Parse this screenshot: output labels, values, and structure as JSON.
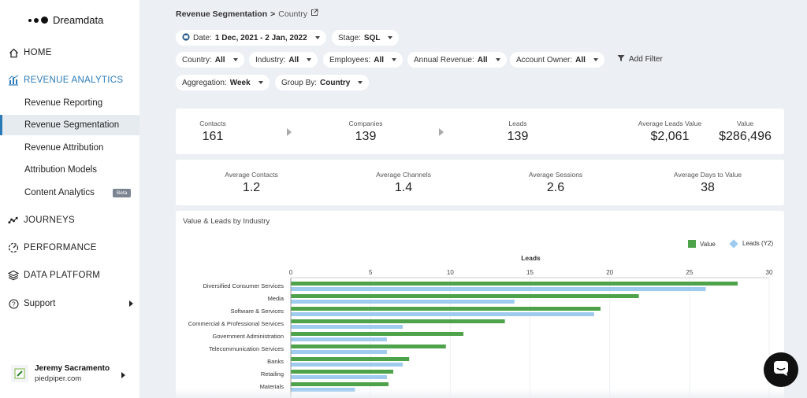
{
  "app": {
    "name": "Dreamdata"
  },
  "sidebar": {
    "home": "HOME",
    "revenue_analytics": "REVENUE ANALYTICS",
    "sub_items": [
      {
        "label": "Revenue Reporting"
      },
      {
        "label": "Revenue Segmentation",
        "active": true
      },
      {
        "label": "Revenue Attribution"
      },
      {
        "label": "Attribution Models"
      },
      {
        "label": "Content Analytics",
        "badge": "Beta"
      }
    ],
    "journeys": "JOURNEYS",
    "performance": "PERFORMANCE",
    "data_platform": "DATA PLATFORM",
    "support": "Support",
    "user": {
      "name": "Jeremy Sacramento",
      "domain": "piedpiper.com",
      "logo_text": "piedpiper"
    }
  },
  "header": {
    "breadcrumb_parent": "Revenue Segmentation",
    "breadcrumb_separator": ">",
    "breadcrumb_current": "Country"
  },
  "filters": {
    "date": {
      "label": "Date:",
      "value": "1 Dec, 2021 - 2 Jan, 2022"
    },
    "stage": {
      "label": "Stage:",
      "value": "SQL"
    },
    "country": {
      "label": "Country:",
      "value": "All"
    },
    "industry": {
      "label": "Industry:",
      "value": "All"
    },
    "employees": {
      "label": "Employees:",
      "value": "All"
    },
    "annual_revenue": {
      "label": "Annual Revenue:",
      "value": "All"
    },
    "account_owner": {
      "label": "Account Owner:",
      "value": "All"
    },
    "add_filter": "Add Filter",
    "aggregation": {
      "label": "Aggregation:",
      "value": "Week"
    },
    "group_by": {
      "label": "Group By:",
      "value": "Country"
    }
  },
  "funnel": {
    "contacts": {
      "label": "Contacts",
      "value": "161"
    },
    "companies": {
      "label": "Companies",
      "value": "139"
    },
    "leads": {
      "label": "Leads",
      "value": "139"
    },
    "avg_leads_value": {
      "label": "Average Leads Value",
      "value": "$2,061"
    },
    "value": {
      "label": "Value",
      "value": "$286,496"
    }
  },
  "averages": {
    "contacts": {
      "label": "Average Contacts",
      "value": "1.2"
    },
    "channels": {
      "label": "Average Channels",
      "value": "1.4"
    },
    "sessions": {
      "label": "Average Sessions",
      "value": "2.6"
    },
    "days": {
      "label": "Average Days to Value",
      "value": "38"
    }
  },
  "colors": {
    "value": "#4ea24a",
    "leads": "#9ecbee",
    "accent": "#2a7ab8"
  },
  "chart_data": {
    "type": "bar",
    "orientation": "horizontal",
    "title": "Value & Leads by Industry",
    "xlabel": "Leads",
    "xlim": [
      0,
      30
    ],
    "xticks": [
      0,
      5,
      10,
      15,
      20,
      25,
      30
    ],
    "legend_position": "top-right",
    "categories": [
      "Diversified Consumer Services",
      "Media",
      "Software & Services",
      "Commercial & Professional Services",
      "Government Administration",
      "Telecommunication Services",
      "Banks",
      "Retailing",
      "Materials"
    ],
    "series": [
      {
        "name": "Value",
        "values": [
          28,
          21.8,
          19.4,
          13.4,
          10.8,
          9.7,
          7.4,
          6.4,
          6.1
        ]
      },
      {
        "name": "Leads (Y2)",
        "values": [
          26,
          14,
          19,
          7,
          6,
          6,
          7,
          6,
          4
        ]
      }
    ]
  }
}
